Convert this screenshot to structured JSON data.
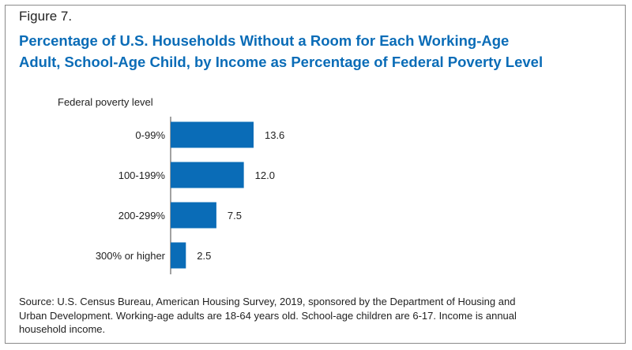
{
  "figure_label": "Figure 7.",
  "title_lines": [
    "Percentage of U.S. Households Without a Room for Each Working-Age",
    "Adult, School-Age Child, by Income as Percentage of Federal Poverty Level"
  ],
  "source_lines": [
    "Source: U.S. Census Bureau, American Housing Survey, 2019, sponsored by the Department of Housing and",
    "Urban Development. Working-age adults are 18-64 years old. School-age children are 6-17. Income is annual",
    "household income."
  ],
  "colors": {
    "bar": "#0a6cb7",
    "title": "#0a6cb7",
    "text": "#222222",
    "axis": "#444444"
  },
  "chart_data": {
    "type": "bar",
    "orientation": "horizontal",
    "title": "Percentage of U.S. Households Without a Room for Each Working-Age Adult, School-Age Child, by Income as Percentage of Federal Poverty Level",
    "ylabel": "Federal poverty level",
    "xlabel": "",
    "categories": [
      "0-99%",
      "100-199%",
      "200-299%",
      "300% or higher"
    ],
    "values": [
      13.6,
      12.0,
      7.5,
      2.5
    ],
    "value_labels": [
      "13.6",
      "12.0",
      "7.5",
      "2.5"
    ],
    "xlim": [
      0,
      15
    ],
    "grid": false,
    "legend": "none"
  }
}
